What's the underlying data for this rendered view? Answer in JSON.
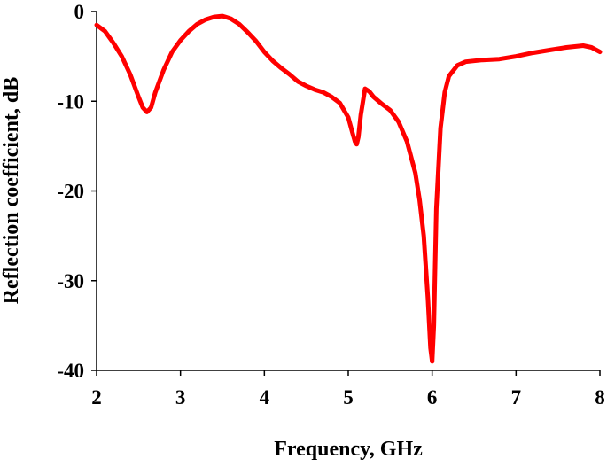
{
  "chart_data": {
    "type": "line",
    "title": "",
    "xlabel": "Frequency, GHz",
    "ylabel": "Reflection coefficient, dB",
    "xlim": [
      2,
      8
    ],
    "ylim": [
      -40,
      0
    ],
    "xticks": [
      2,
      3,
      4,
      5,
      6,
      7,
      8
    ],
    "yticks": [
      0,
      -10,
      -20,
      -30,
      -40
    ],
    "xtick_labels": [
      "2",
      "3",
      "4",
      "5",
      "6",
      "7",
      "8"
    ],
    "ytick_labels": [
      "0",
      "-10",
      "-20",
      "-30",
      "-40"
    ],
    "grid": false,
    "legend": "none",
    "series": [
      {
        "color": "#ff0000",
        "x": [
          2.0,
          2.1,
          2.2,
          2.3,
          2.4,
          2.5,
          2.55,
          2.6,
          2.65,
          2.7,
          2.8,
          2.9,
          3.0,
          3.1,
          3.2,
          3.3,
          3.4,
          3.5,
          3.6,
          3.7,
          3.8,
          3.9,
          4.0,
          4.1,
          4.2,
          4.3,
          4.4,
          4.5,
          4.6,
          4.7,
          4.8,
          4.9,
          5.0,
          5.05,
          5.08,
          5.1,
          5.12,
          5.15,
          5.2,
          5.25,
          5.3,
          5.4,
          5.5,
          5.6,
          5.7,
          5.8,
          5.85,
          5.9,
          5.95,
          5.98,
          6.0,
          6.02,
          6.05,
          6.1,
          6.15,
          6.2,
          6.3,
          6.4,
          6.6,
          6.8,
          7.0,
          7.2,
          7.4,
          7.6,
          7.8,
          7.9,
          8.0
        ],
        "y": [
          -1.5,
          -2.2,
          -3.5,
          -5.0,
          -7.0,
          -9.5,
          -10.7,
          -11.2,
          -10.7,
          -9.0,
          -6.5,
          -4.5,
          -3.2,
          -2.2,
          -1.4,
          -0.9,
          -0.6,
          -0.5,
          -0.8,
          -1.4,
          -2.3,
          -3.3,
          -4.5,
          -5.5,
          -6.3,
          -7.0,
          -7.8,
          -8.3,
          -8.7,
          -9.0,
          -9.5,
          -10.2,
          -11.8,
          -13.5,
          -14.5,
          -14.8,
          -14.0,
          -11.5,
          -8.6,
          -8.9,
          -9.5,
          -10.3,
          -11.0,
          -12.3,
          -14.5,
          -18.0,
          -21.0,
          -25.0,
          -32.0,
          -37.5,
          -39.0,
          -35.0,
          -22.0,
          -13.0,
          -9.0,
          -7.2,
          -6.0,
          -5.6,
          -5.4,
          -5.3,
          -5.0,
          -4.6,
          -4.3,
          -4.0,
          -3.8,
          -4.0,
          -4.5
        ]
      }
    ]
  }
}
